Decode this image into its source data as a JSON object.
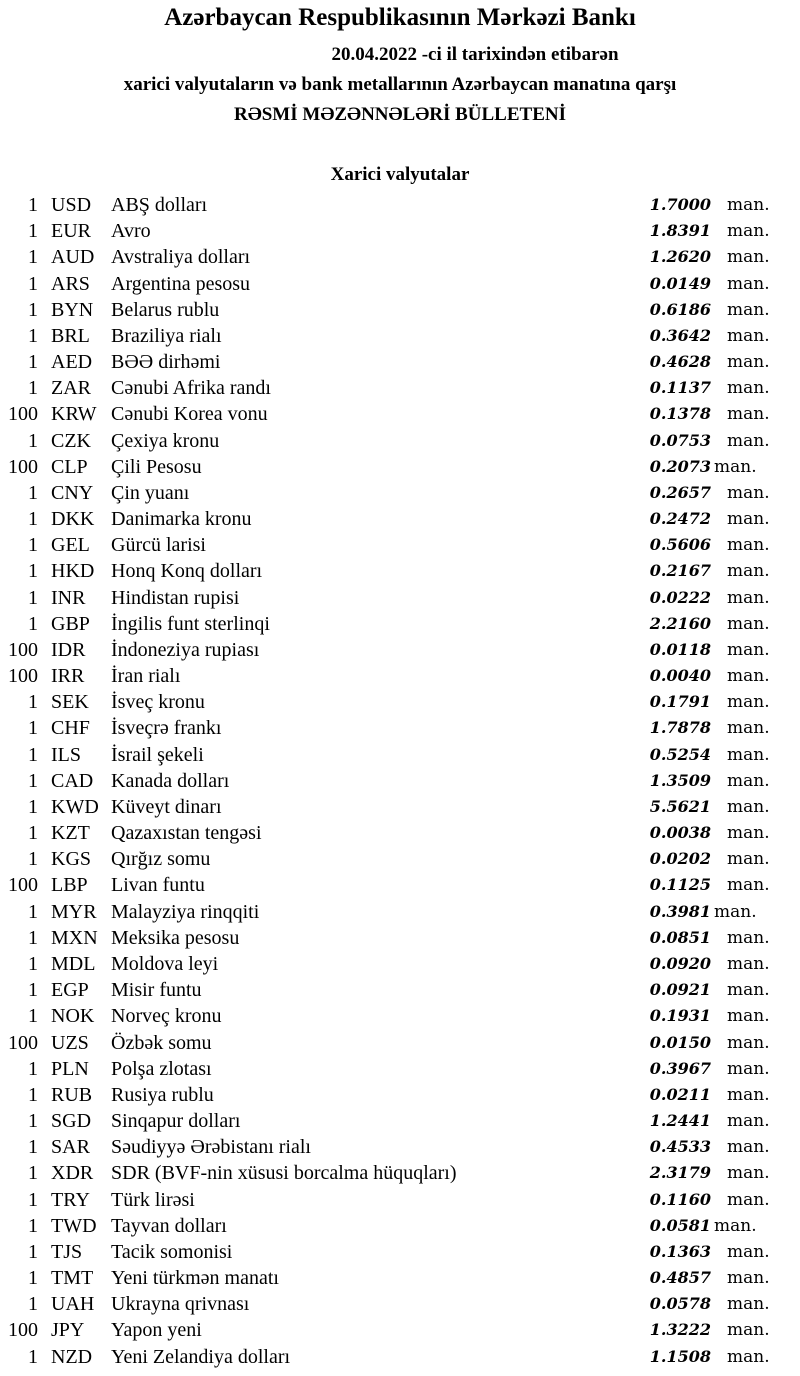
{
  "header": {
    "title": "Azərbaycan Respublikasının Mərkəzi Bankı",
    "date_line": "20.04.2022 -ci il tarixindən etibarən",
    "subtitle": "xarici valyutaların və bank metallarının Azərbaycan manatına qarşı",
    "bulletin": "RƏSMİ MƏZƏNNƏLƏRİ BÜLLETENİ",
    "section": "Xarici valyutalar"
  },
  "unit": "man.",
  "rates": [
    {
      "qty": "1",
      "code": "USD",
      "name": "ABŞ dolları",
      "value": "1.7000"
    },
    {
      "qty": "1",
      "code": "EUR",
      "name": "Avro",
      "value": "1.8391"
    },
    {
      "qty": "1",
      "code": "AUD",
      "name": "Avstraliya dolları",
      "value": "1.2620"
    },
    {
      "qty": "1",
      "code": "ARS",
      "name": "Argentina pesosu",
      "value": "0.0149"
    },
    {
      "qty": "1",
      "code": "BYN",
      "name": "Belarus rublu",
      "value": "0.6186"
    },
    {
      "qty": "1",
      "code": "BRL",
      "name": "Braziliya rialı",
      "value": "0.3642"
    },
    {
      "qty": "1",
      "code": "AED",
      "name": "BƏƏ dirhəmi",
      "value": "0.4628"
    },
    {
      "qty": "1",
      "code": "ZAR",
      "name": "Cənubi Afrika randı",
      "value": "0.1137"
    },
    {
      "qty": "100",
      "code": "KRW",
      "name": "Cənubi Korea vonu",
      "value": "0.1378"
    },
    {
      "qty": "1",
      "code": "CZK",
      "name": "Çexiya kronu",
      "value": "0.0753"
    },
    {
      "qty": "100",
      "code": "CLP",
      "name": "Çili Pesosu",
      "value": "0.2073",
      "tight": true
    },
    {
      "qty": "1",
      "code": "CNY",
      "name": "Çin yuanı",
      "value": "0.2657"
    },
    {
      "qty": "1",
      "code": "DKK",
      "name": "Danimarka kronu",
      "value": "0.2472"
    },
    {
      "qty": "1",
      "code": "GEL",
      "name": "Gürcü larisi",
      "value": "0.5606"
    },
    {
      "qty": "1",
      "code": "HKD",
      "name": "Honq Konq dolları",
      "value": "0.2167"
    },
    {
      "qty": "1",
      "code": "INR",
      "name": "Hindistan rupisi",
      "value": "0.0222"
    },
    {
      "qty": "1",
      "code": "GBP",
      "name": "İngilis funt sterlinqi",
      "value": "2.2160"
    },
    {
      "qty": "100",
      "code": "IDR",
      "name": "İndoneziya rupiası",
      "value": "0.0118"
    },
    {
      "qty": "100",
      "code": "IRR",
      "name": "İran rialı",
      "value": "0.0040"
    },
    {
      "qty": "1",
      "code": "SEK",
      "name": "İsveç kronu",
      "value": "0.1791"
    },
    {
      "qty": "1",
      "code": "CHF",
      "name": "İsveçrə frankı",
      "value": "1.7878"
    },
    {
      "qty": "1",
      "code": "ILS",
      "name": "İsrail şekeli",
      "value": "0.5254"
    },
    {
      "qty": "1",
      "code": "CAD",
      "name": "Kanada dolları",
      "value": "1.3509"
    },
    {
      "qty": "1",
      "code": "KWD",
      "name": "Küveyt dinarı",
      "value": "5.5621"
    },
    {
      "qty": "1",
      "code": "KZT",
      "name": "Qazaxıstan tengəsi",
      "value": "0.0038"
    },
    {
      "qty": "1",
      "code": "KGS",
      "name": "Qırğız somu",
      "value": "0.0202"
    },
    {
      "qty": "100",
      "code": "LBP",
      "name": "Livan funtu",
      "value": "0.1125"
    },
    {
      "qty": "1",
      "code": "MYR",
      "name": "Malayziya rinqqiti",
      "value": "0.3981",
      "tight": true
    },
    {
      "qty": "1",
      "code": "MXN",
      "name": "Meksika pesosu",
      "value": "0.0851"
    },
    {
      "qty": "1",
      "code": "MDL",
      "name": "Moldova leyi",
      "value": "0.0920"
    },
    {
      "qty": "1",
      "code": "EGP",
      "name": "Misir funtu",
      "value": "0.0921"
    },
    {
      "qty": "1",
      "code": "NOK",
      "name": "Norveç kronu",
      "value": "0.1931"
    },
    {
      "qty": "100",
      "code": "UZS",
      "name": "Özbək somu",
      "value": "0.0150"
    },
    {
      "qty": "1",
      "code": "PLN",
      "name": "Polşa zlotası",
      "value": "0.3967"
    },
    {
      "qty": "1",
      "code": "RUB",
      "name": "Rusiya rublu",
      "value": "0.0211"
    },
    {
      "qty": "1",
      "code": "SGD",
      "name": "Sinqapur dolları",
      "value": "1.2441"
    },
    {
      "qty": "1",
      "code": "SAR",
      "name": "Səudiyyə Ərəbistanı rialı",
      "value": "0.4533"
    },
    {
      "qty": "1",
      "code": "XDR",
      "name": "SDR (BVF-nin xüsusi borcalma hüquqları)",
      "value": "2.3179"
    },
    {
      "qty": "1",
      "code": "TRY",
      "name": "Türk lirəsi",
      "value": "0.1160"
    },
    {
      "qty": "1",
      "code": "TWD",
      "name": "Tayvan dolları",
      "value": "0.0581",
      "tight": true
    },
    {
      "qty": "1",
      "code": "TJS",
      "name": "Tacik somonisi",
      "value": "0.1363"
    },
    {
      "qty": "1",
      "code": "TMT",
      "name": "Yeni türkmən manatı",
      "value": "0.4857"
    },
    {
      "qty": "1",
      "code": "UAH",
      "name": "Ukrayna qrivnası",
      "value": "0.0578"
    },
    {
      "qty": "100",
      "code": "JPY",
      "name": "Yapon yeni",
      "value": "1.3222"
    },
    {
      "qty": "1",
      "code": "NZD",
      "name": "Yeni Zelandiya dolları",
      "value": "1.1508"
    }
  ]
}
